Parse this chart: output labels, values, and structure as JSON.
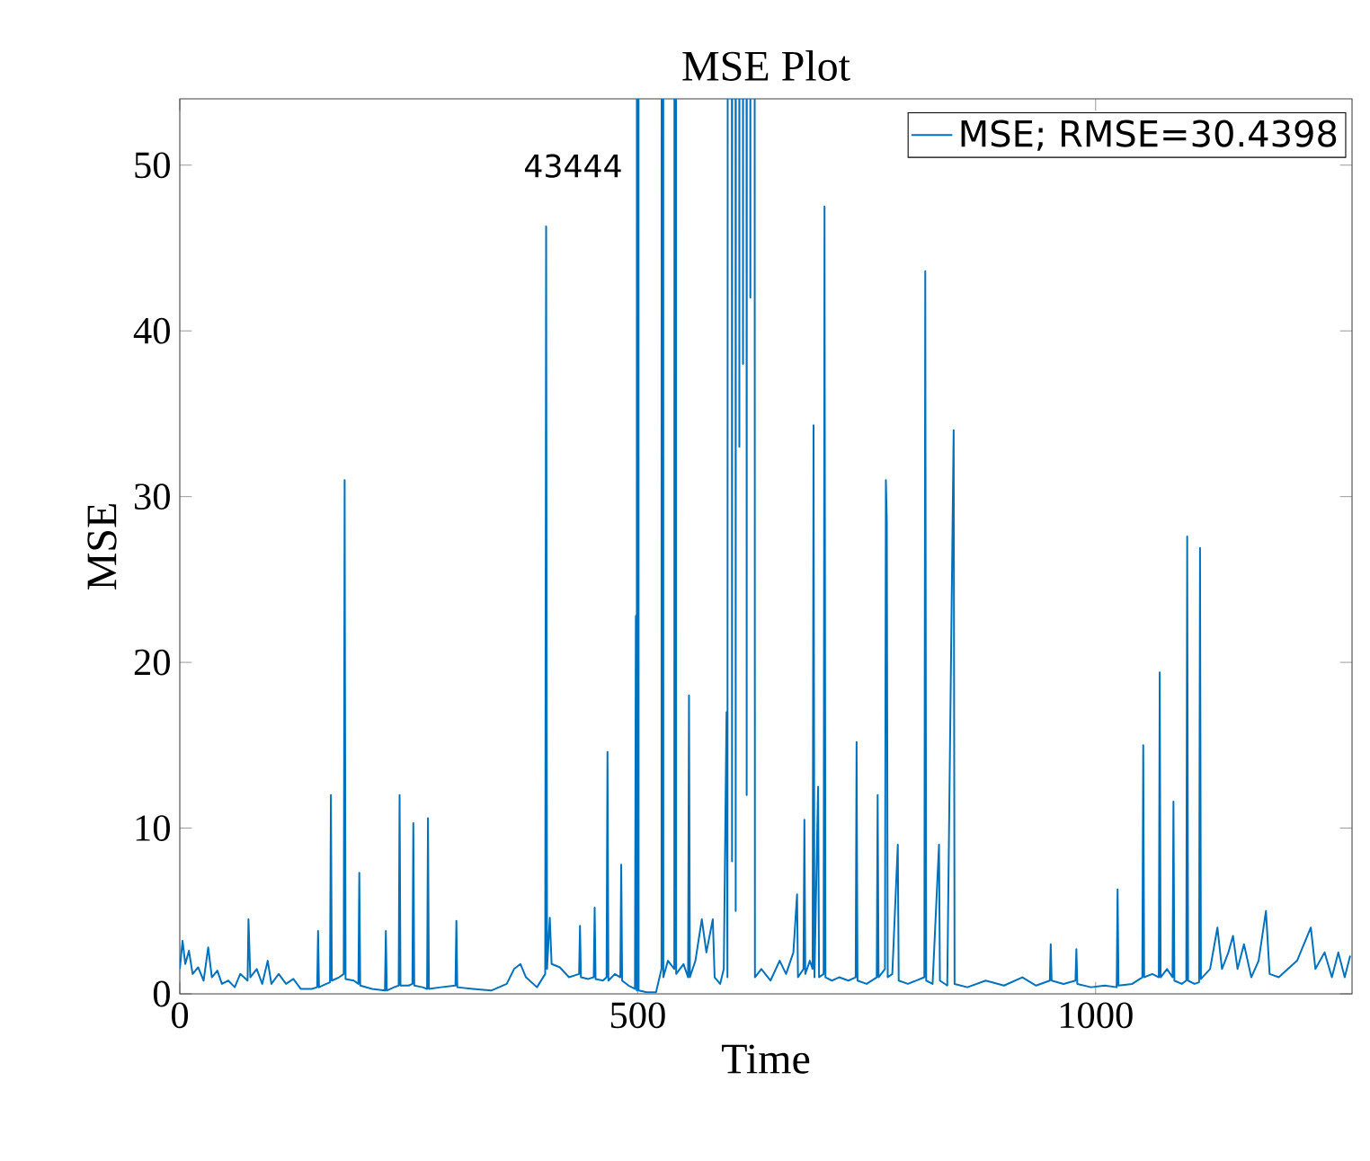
{
  "chart_data": {
    "type": "line",
    "title": "MSE Plot",
    "xlabel": "Time",
    "ylabel": "MSE",
    "annotations": [
      "43444"
    ],
    "xlim": [
      0,
      1280
    ],
    "ylim": [
      0,
      54
    ],
    "xticks": [
      0,
      500,
      1000
    ],
    "yticks": [
      0,
      10,
      20,
      30,
      40,
      50
    ],
    "legend": "top right",
    "series": [
      {
        "name": "MSE; RMSE=30.4398",
        "color": "#0072bd",
        "x": [
          0,
          3,
          6,
          10,
          14,
          20,
          26,
          31,
          35,
          41,
          46,
          53,
          60,
          66,
          74,
          75,
          77,
          84,
          90,
          96,
          100,
          108,
          116,
          124,
          132,
          144,
          150,
          151,
          152,
          160,
          164,
          165,
          166,
          174,
          179,
          180,
          181,
          190,
          195,
          196,
          197,
          210,
          224,
          225,
          226,
          234,
          239,
          240,
          241,
          250,
          254,
          255,
          256,
          265,
          270,
          271,
          272,
          285,
          301,
          302,
          303,
          320,
          340,
          357,
          365,
          372,
          378,
          390,
          399,
          400,
          401,
          404,
          406,
          415,
          425,
          436,
          437,
          438,
          446,
          452,
          453,
          454,
          462,
          466,
          467,
          468,
          475,
          481,
          482,
          483,
          490,
          497,
          498,
          499,
          500,
          501,
          510,
          520,
          526,
          527,
          528,
          533,
          540,
          541,
          542,
          550,
          555,
          556,
          557,
          563,
          570,
          575,
          582,
          584,
          590,
          594,
          597,
          598,
          601,
          603,
          605,
          607,
          609,
          611,
          613,
          615,
          617,
          619,
          621,
          623,
          625,
          628,
          635,
          645,
          655,
          662,
          670,
          674,
          675,
          681,
          682,
          683,
          688,
          691,
          692,
          693,
          697,
          698,
          703,
          704,
          705,
          712,
          720,
          730,
          738,
          739,
          740,
          750,
          761,
          762,
          763,
          770,
          771,
          772,
          773,
          778,
          784,
          785,
          795,
          813,
          814,
          815,
          822,
          829,
          830,
          838,
          845,
          846,
          860,
          880,
          900,
          920,
          935,
          950,
          951,
          952,
          965,
          978,
          979,
          980,
          995,
          1010,
          1023,
          1024,
          1025,
          1040,
          1051,
          1052,
          1053,
          1062,
          1069,
          1070,
          1071,
          1078,
          1084,
          1085,
          1086,
          1094,
          1099,
          1100,
          1101,
          1108,
          1113,
          1114,
          1115,
          1125,
          1133,
          1138,
          1145,
          1150,
          1155,
          1162,
          1170,
          1178,
          1186,
          1190,
          1200,
          1210,
          1220,
          1235,
          1240,
          1250,
          1258,
          1265,
          1272,
          1278
        ],
        "values": [
          1.5,
          3.2,
          1.8,
          2.6,
          1.2,
          1.6,
          0.8,
          2.8,
          1.0,
          1.4,
          0.6,
          0.8,
          0.4,
          1.2,
          0.8,
          4.5,
          1.0,
          1.5,
          0.6,
          2.0,
          0.6,
          1.2,
          0.6,
          0.9,
          0.3,
          0.3,
          0.4,
          3.8,
          0.4,
          0.6,
          0.7,
          12,
          0.8,
          1.0,
          1.2,
          31,
          0.9,
          0.8,
          0.6,
          7.3,
          0.5,
          0.3,
          0.2,
          3.8,
          0.2,
          0.4,
          0.5,
          12,
          0.5,
          0.5,
          0.6,
          10.3,
          0.5,
          0.4,
          0.3,
          10.6,
          0.3,
          0.4,
          0.5,
          4.4,
          0.4,
          0.3,
          0.2,
          0.6,
          1.5,
          1.8,
          1.0,
          0.4,
          1.2,
          46.3,
          1.5,
          4.6,
          1.8,
          1.6,
          1.0,
          1.2,
          4.1,
          1.0,
          0.9,
          1.0,
          5.2,
          0.9,
          0.8,
          1.0,
          14.6,
          0.8,
          1.2,
          1.0,
          7.8,
          0.8,
          0.5,
          0.3,
          22.8,
          0.2,
          null,
          0.2,
          0.1,
          0.1,
          1.5,
          null,
          1.0,
          2.0,
          1.5,
          null,
          1.2,
          1.8,
          1.0,
          18,
          1.0,
          2.0,
          4.5,
          2.5,
          4.5,
          1.0,
          0.6,
          1.5,
          17,
          1.0,
          null,
          8,
          null,
          5,
          null,
          33,
          null,
          38,
          null,
          12,
          null,
          42,
          null,
          1.0,
          1.5,
          0.8,
          2.0,
          1.2,
          2.5,
          6,
          1.0,
          1.5,
          10.5,
          1.2,
          2.0,
          1.5,
          34.3,
          1.0,
          12.5,
          1.0,
          1.2,
          47.5,
          1.0,
          0.8,
          1.0,
          0.8,
          1.0,
          15.2,
          0.8,
          0.6,
          1.0,
          12,
          1.0,
          1.5,
          31,
          28.5,
          1.0,
          1.2,
          9,
          0.8,
          0.6,
          1.0,
          43.6,
          0.8,
          0.6,
          9,
          0.8,
          0.5,
          34,
          0.6,
          0.4,
          0.8,
          0.5,
          1.0,
          0.5,
          0.8,
          3.0,
          0.8,
          0.6,
          0.8,
          2.7,
          0.6,
          0.4,
          0.5,
          0.4,
          6.3,
          0.5,
          0.6,
          1.0,
          15,
          1.0,
          1.2,
          1.0,
          19.4,
          1.0,
          1.5,
          1.0,
          11.6,
          0.8,
          0.6,
          0.8,
          27.6,
          0.8,
          0.6,
          0.7,
          26.9,
          0.9,
          1.5,
          4.0,
          1.5,
          2.5,
          3.5,
          1.5,
          3.0,
          1.0,
          2.0,
          5.0,
          1.2,
          1.0,
          1.5,
          2.0,
          4.0,
          1.5,
          2.5,
          1.0,
          2.5,
          1.0,
          2.3
        ]
      }
    ]
  }
}
